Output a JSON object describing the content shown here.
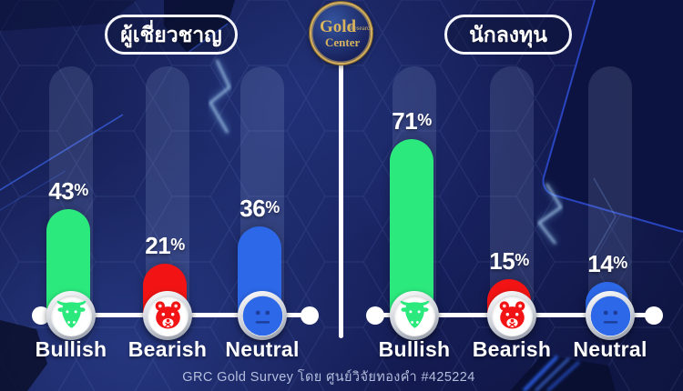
{
  "logo": {
    "line1": "Gold",
    "line2": "Research",
    "line3": "Center"
  },
  "panels": [
    {
      "title": "ผู้เชี่ยวชาญ",
      "bars": [
        {
          "category": "Bullish",
          "value": 43,
          "unit": "%",
          "color": "#2BE97D",
          "icon": "bull-icon"
        },
        {
          "category": "Bearish",
          "value": 21,
          "unit": "%",
          "color": "#F21414",
          "icon": "bear-icon"
        },
        {
          "category": "Neutral",
          "value": 36,
          "unit": "%",
          "color": "#2D68E8",
          "icon": "neutral-face-icon"
        }
      ]
    },
    {
      "title": "นักลงทุน",
      "bars": [
        {
          "category": "Bullish",
          "value": 71,
          "unit": "%",
          "color": "#2BE97D",
          "icon": "bull-icon"
        },
        {
          "category": "Bearish",
          "value": 15,
          "unit": "%",
          "color": "#F21414",
          "icon": "bear-icon"
        },
        {
          "category": "Neutral",
          "value": 14,
          "unit": "%",
          "color": "#2D68E8",
          "icon": "neutral-face-icon"
        }
      ]
    }
  ],
  "footer": {
    "credit": "GRC Gold Survey โดย ศูนย์วิจัยทองคำ #425224"
  },
  "colors": {
    "bullish": "#2BE97D",
    "bearish": "#F21414",
    "neutral": "#2D68E8",
    "background": "#141C50",
    "accent_gold": "#D4AF5E",
    "baseline": "#FFFFFF"
  },
  "chart_data": {
    "type": "bar",
    "title": "GRC Gold Survey โดย ศูนย์วิจัยทองคำ #425224",
    "unit": "%",
    "categories": [
      "Bullish",
      "Bearish",
      "Neutral"
    ],
    "series": [
      {
        "name": "ผู้เชี่ยวชาญ",
        "values": [
          43,
          21,
          36
        ]
      },
      {
        "name": "นักลงทุน",
        "values": [
          71,
          15,
          14
        ]
      }
    ],
    "ylim": [
      0,
      100
    ],
    "grid": false,
    "legend_position": "panel-headers",
    "series_colors_by_category": {
      "Bullish": "#2BE97D",
      "Bearish": "#F21414",
      "Neutral": "#2D68E8"
    }
  }
}
